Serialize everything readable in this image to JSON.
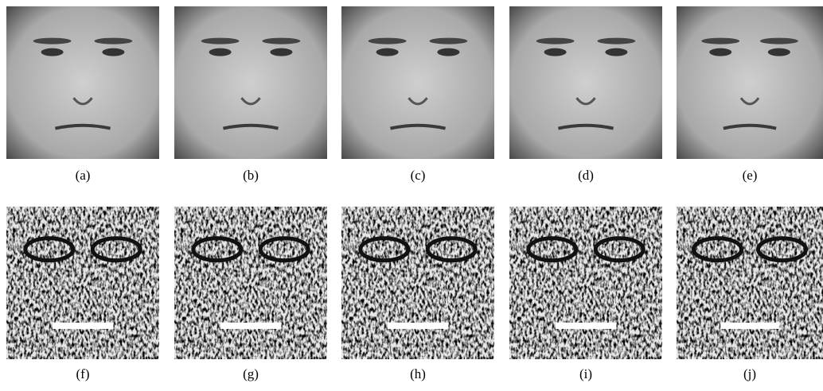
{
  "figure": {
    "captions": [
      "(a)",
      "(b)",
      "(c)",
      "(d)",
      "(e)",
      "(f)",
      "(g)",
      "(h)",
      "(i)",
      "(j)"
    ]
  }
}
